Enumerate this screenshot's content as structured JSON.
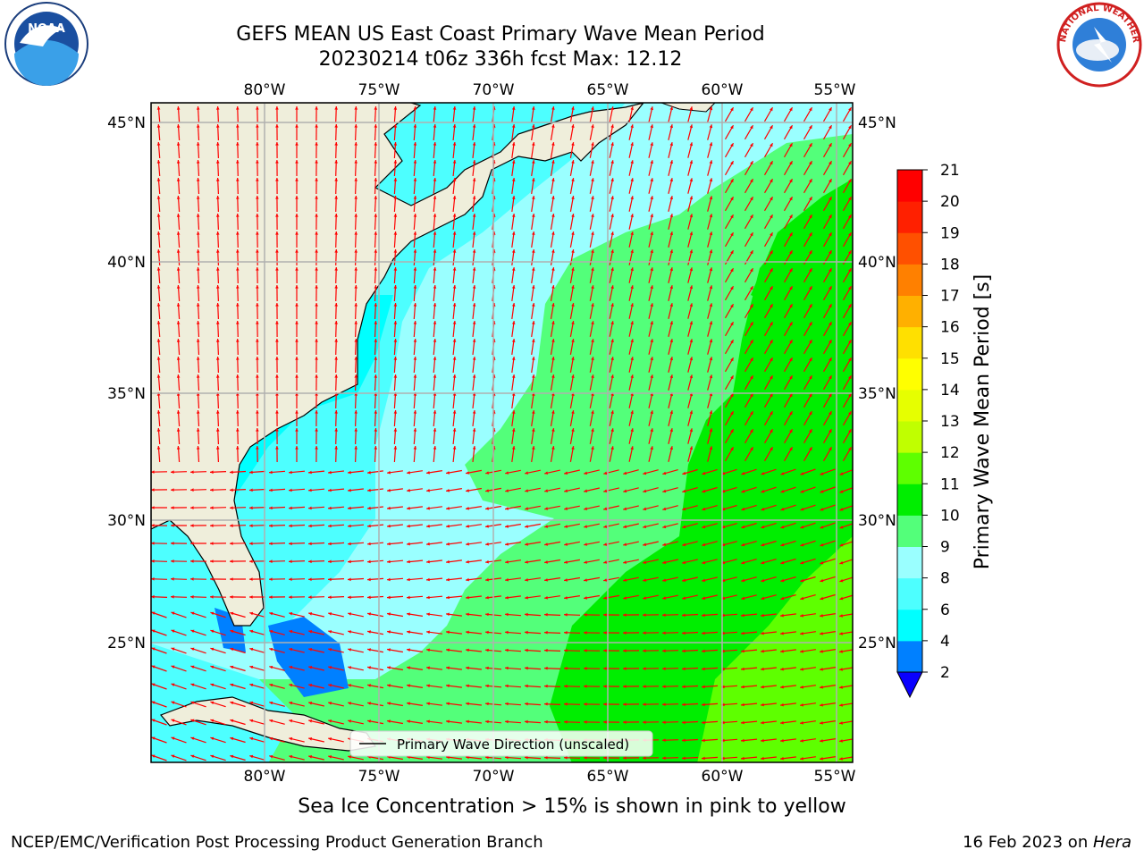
{
  "title": {
    "line1": "GEFS MEAN US East Coast Primary Wave Mean Period",
    "line2": "20230214 t06z 336h fcst   Max: 12.12"
  },
  "logos": {
    "noaa_text": "NOAA",
    "nws_text": "NATIONAL WEATHER SERVICE"
  },
  "map": {
    "lon_ticks": [
      "80°W",
      "75°W",
      "70°W",
      "65°W",
      "60°W",
      "55°W"
    ],
    "lat_ticks": [
      "45°N",
      "40°N",
      "35°N",
      "30°N",
      "25°N"
    ],
    "legend_label": "Primary Wave Direction (unscaled)",
    "arrow_color": "#ff0000",
    "land_color": "#efeedb",
    "grid_color": "#b0b0b0"
  },
  "colorbar": {
    "label": "Primary Wave Mean Period [s]",
    "ticks": [
      "2",
      "4",
      "6",
      "8",
      "9",
      "10",
      "11",
      "12",
      "13",
      "14",
      "15",
      "16",
      "17",
      "18",
      "19",
      "20",
      "21"
    ],
    "colors": [
      "#0a00ff",
      "#0080ff",
      "#00ffff",
      "#4dffff",
      "#9affff",
      "#53ff7a",
      "#00ee00",
      "#5eff00",
      "#c0ff00",
      "#e6ff00",
      "#ffff00",
      "#ffe000",
      "#ffb000",
      "#ff8000",
      "#ff5000",
      "#ff2000",
      "#ff0000"
    ]
  },
  "ice_note": "Sea Ice Concentration > 15% is shown in pink to yellow",
  "footer": {
    "left": "NCEP/EMC/Verification Post Processing Product Generation Branch",
    "date": "16 Feb 2023 on ",
    "machine": "Hera"
  }
}
